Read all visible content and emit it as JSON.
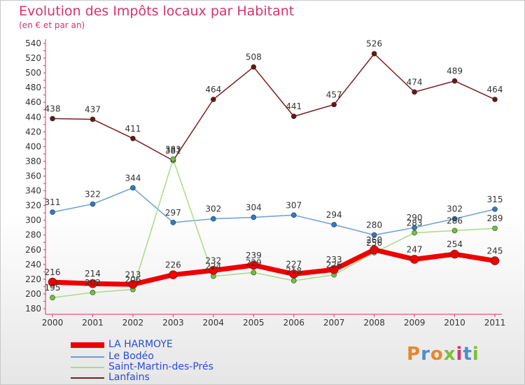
{
  "header": {
    "title": "Evolution des Impôts locaux par Habitant",
    "subtitle": "(en € et par an)"
  },
  "logo": {
    "text": "Proxiti",
    "colors": [
      "#e8872b",
      "#4a8fd0",
      "#e8872b",
      "#7bbf3a",
      "#d5336b",
      "#4a8fd0",
      "#7bbf3a"
    ]
  },
  "chart_data": {
    "type": "line",
    "title": "Evolution des Impôts locaux par Habitant",
    "subtitle": "(en € et par an)",
    "xlabel": "",
    "ylabel": "",
    "ylim": [
      180,
      540
    ],
    "yticks": [
      180,
      200,
      220,
      240,
      260,
      280,
      300,
      320,
      340,
      360,
      380,
      400,
      420,
      440,
      460,
      480,
      500,
      520,
      540
    ],
    "grid": false,
    "legend_position": "bottom-left",
    "categories": [
      "2000",
      "2001",
      "2002",
      "2003",
      "2004",
      "2005",
      "2006",
      "2007",
      "2008",
      "2009",
      "2010",
      "2011"
    ],
    "series": [
      {
        "name": "Lanfains",
        "color": "#7a1f1f",
        "marker": "#6b1414",
        "line_width": 1.5,
        "values": [
          438,
          437,
          411,
          381,
          464,
          508,
          441,
          457,
          526,
          474,
          489,
          464
        ]
      },
      {
        "name": "Le Bodéo",
        "color": "#6a9fd4",
        "marker": "#2f7bc4",
        "line_width": 1.5,
        "values": [
          311,
          322,
          344,
          297,
          302,
          304,
          307,
          294,
          280,
          290,
          302,
          315
        ]
      },
      {
        "name": "Saint-Martin-des-Prés",
        "color": "#a8dc82",
        "marker": "#72c23e",
        "line_width": 1.5,
        "values": [
          195,
          202,
          206,
          383,
          224,
          229,
          218,
          226,
          256,
          283,
          286,
          289
        ]
      },
      {
        "name": "LA HARMOYE",
        "color": "#ee0000",
        "marker": "#ee0000",
        "line_width": 7,
        "values": [
          216,
          214,
          213,
          226,
          232,
          239,
          227,
          233,
          260,
          247,
          254,
          245
        ]
      }
    ],
    "legend": [
      "LA HARMOYE",
      "Le Bodéo",
      "Saint-Martin-des-Prés",
      "Lanfains"
    ]
  }
}
